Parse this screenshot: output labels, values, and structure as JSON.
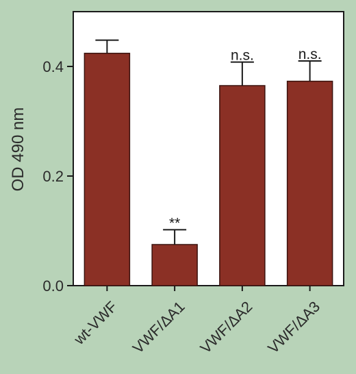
{
  "chart_data": {
    "type": "bar",
    "title": "",
    "xlabel": "",
    "ylabel": "OD 490 nm",
    "ylim": [
      0,
      0.5
    ],
    "yticks": [
      0.0,
      0.2,
      0.4
    ],
    "ytick_labels": [
      "0.0",
      "0.2",
      "0.4"
    ],
    "grid": false,
    "categories": [
      "wt-VWF",
      "VWF/ΔA1",
      "VWF/ΔA2",
      "VWF/ΔA3"
    ],
    "values": [
      0.424,
      0.075,
      0.365,
      0.373
    ],
    "errors": [
      0.024,
      0.027,
      0.043,
      0.037
    ],
    "annotations": [
      "",
      "**",
      "n.s.",
      "n.s."
    ],
    "colors": {
      "bar": "#8b3025",
      "bar_edge": "#3a120e",
      "background": "#b8d3b8",
      "plot_area": "#ffffff",
      "axis": "#1a1a1a"
    }
  }
}
